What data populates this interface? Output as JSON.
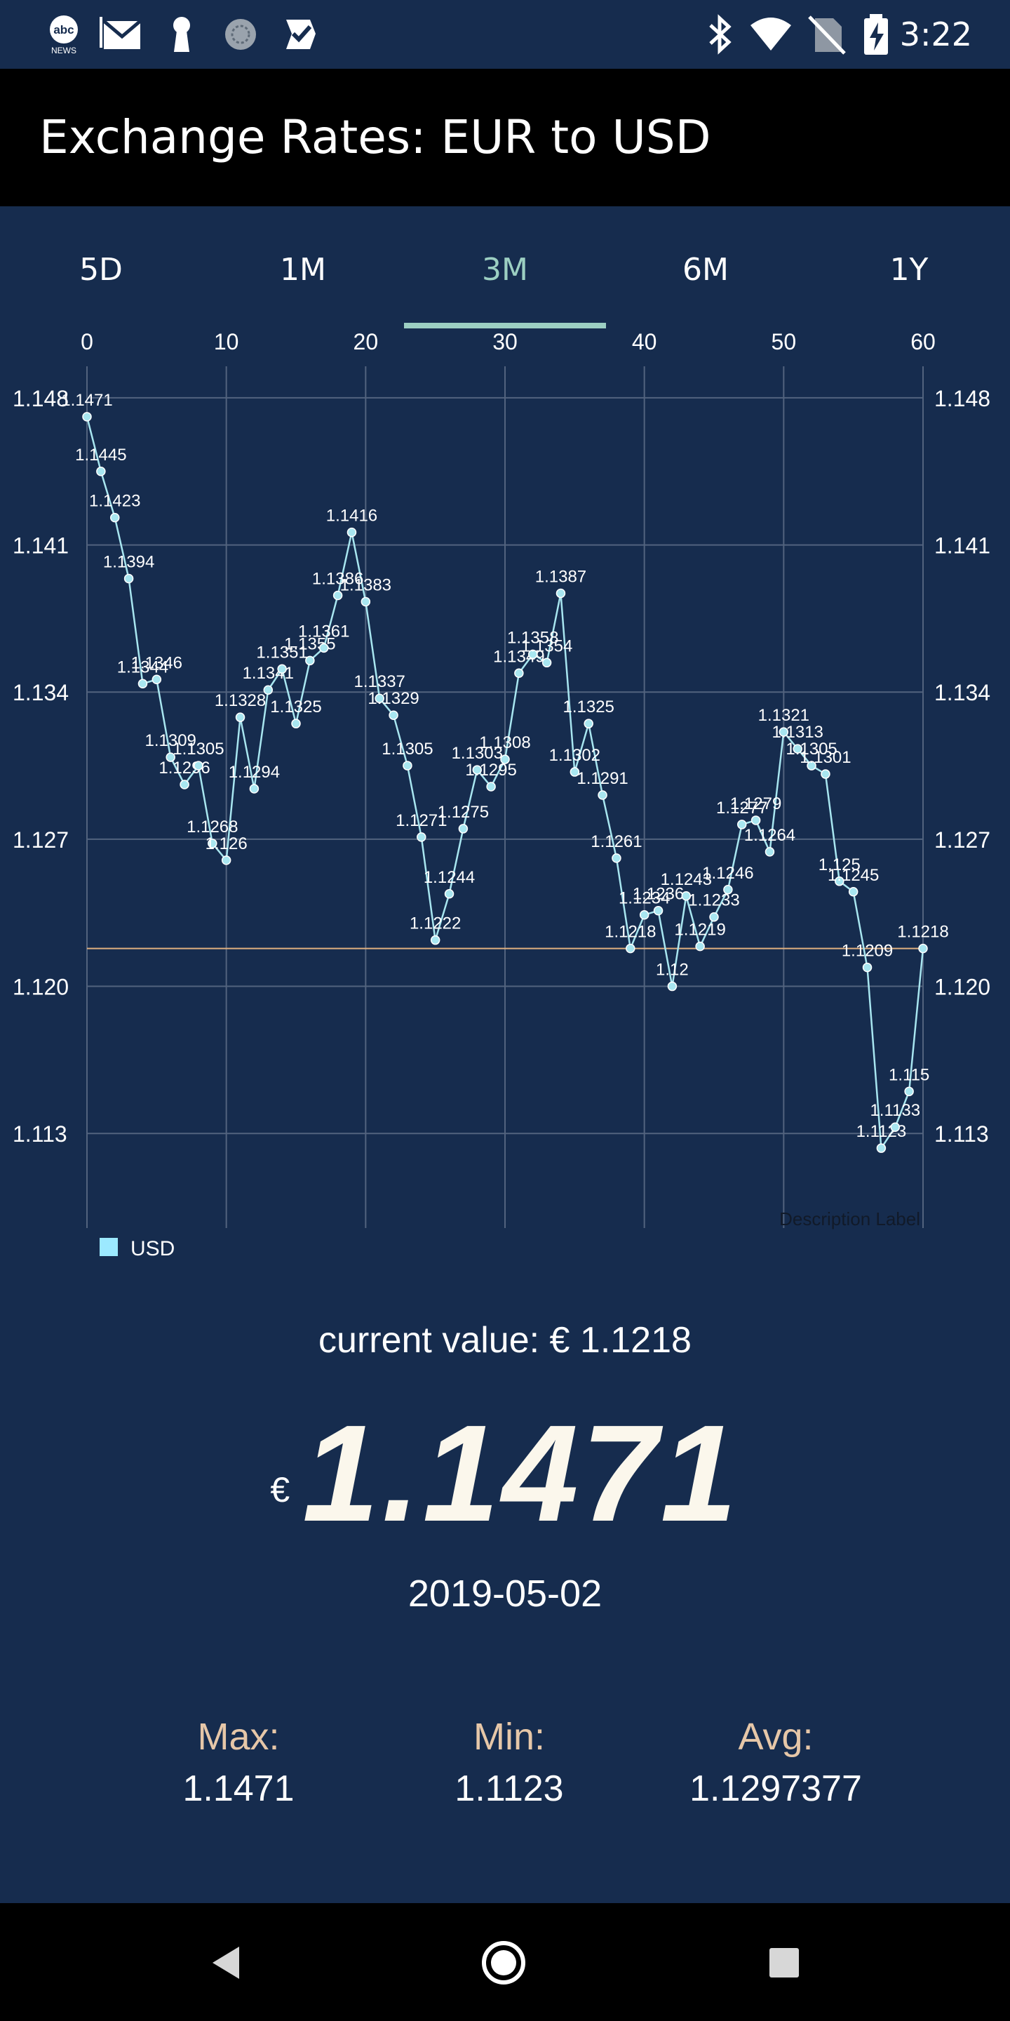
{
  "status_bar": {
    "time": "3:22",
    "left_icons": [
      "abc-news-icon",
      "gmail-icon",
      "keyhole-icon",
      "sync-icon",
      "tasks-icon"
    ],
    "right_icons": [
      "bluetooth-icon",
      "wifi-icon",
      "no-sim-icon",
      "battery-charging-icon"
    ]
  },
  "app_bar": {
    "title": "Exchange Rates: EUR to USD"
  },
  "tabs": [
    {
      "label": "5D",
      "active": false
    },
    {
      "label": "1M",
      "active": false
    },
    {
      "label": "3M",
      "active": true
    },
    {
      "label": "6M",
      "active": false
    },
    {
      "label": "1Y",
      "active": false
    }
  ],
  "chart_data": {
    "type": "line",
    "x": [
      0,
      1,
      2,
      3,
      4,
      5,
      6,
      7,
      8,
      9,
      10,
      11,
      12,
      13,
      14,
      15,
      16,
      17,
      18,
      19,
      20,
      21,
      22,
      23,
      24,
      25,
      26,
      27,
      28,
      29,
      30,
      31,
      32,
      33,
      34,
      35,
      36,
      37,
      38,
      39,
      40,
      41,
      42,
      43,
      44,
      45,
      46,
      47,
      48,
      49,
      50,
      51,
      52,
      53,
      54,
      55,
      56,
      57,
      58,
      59,
      60
    ],
    "series": [
      {
        "name": "USD",
        "values": [
          1.1471,
          1.1445,
          1.1423,
          1.1394,
          1.1344,
          1.1346,
          1.1309,
          1.1296,
          1.1305,
          1.1268,
          1.126,
          1.1328,
          1.1294,
          1.1341,
          1.1351,
          1.1325,
          1.1355,
          1.1361,
          1.1386,
          1.1416,
          1.1383,
          1.1337,
          1.1329,
          1.1305,
          1.1271,
          1.1222,
          1.1244,
          1.1275,
          1.1303,
          1.1295,
          1.1308,
          1.1349,
          1.1358,
          1.1354,
          1.1387,
          1.1302,
          1.1325,
          1.1291,
          1.1261,
          1.1218,
          1.1234,
          1.1236,
          1.12,
          1.1243,
          1.1219,
          1.1233,
          1.1246,
          1.1277,
          1.1279,
          1.1264,
          1.1321,
          1.1313,
          1.1305,
          1.1301,
          1.125,
          1.1245,
          1.1209,
          1.1123,
          1.1133,
          1.115,
          1.1218
        ],
        "color": "#a8e6f0"
      }
    ],
    "xlim": [
      0,
      60
    ],
    "x_ticks": [
      "0",
      "10",
      "20",
      "30",
      "40",
      "50",
      "60"
    ],
    "ylim": [
      1.1085,
      1.1495
    ],
    "y_ticks": [
      1.113,
      1.12,
      1.127,
      1.134,
      1.141,
      1.148
    ],
    "y_tick_labels": [
      "1.113",
      "1.120",
      "1.127",
      "1.134",
      "1.141",
      "1.148"
    ],
    "limit_line": 1.1218,
    "limit_line_color": "#e0b080",
    "grid": true,
    "description_label": "Description Label",
    "legend_label": "USD",
    "legend_color": "#9ce9ff",
    "legend_position": "bottom-left"
  },
  "summary": {
    "current_label": "current value: € 1.1218",
    "currency_symbol": "€",
    "big_value": "1.1471",
    "date": "2019-05-02",
    "max_label": "Max:",
    "max_value": "1.1471",
    "min_label": "Min:",
    "min_value": "1.1123",
    "avg_label": "Avg:",
    "avg_value": "1.1297377"
  },
  "nav_bar": {
    "buttons": [
      "back-icon",
      "home-icon",
      "recents-icon"
    ]
  }
}
